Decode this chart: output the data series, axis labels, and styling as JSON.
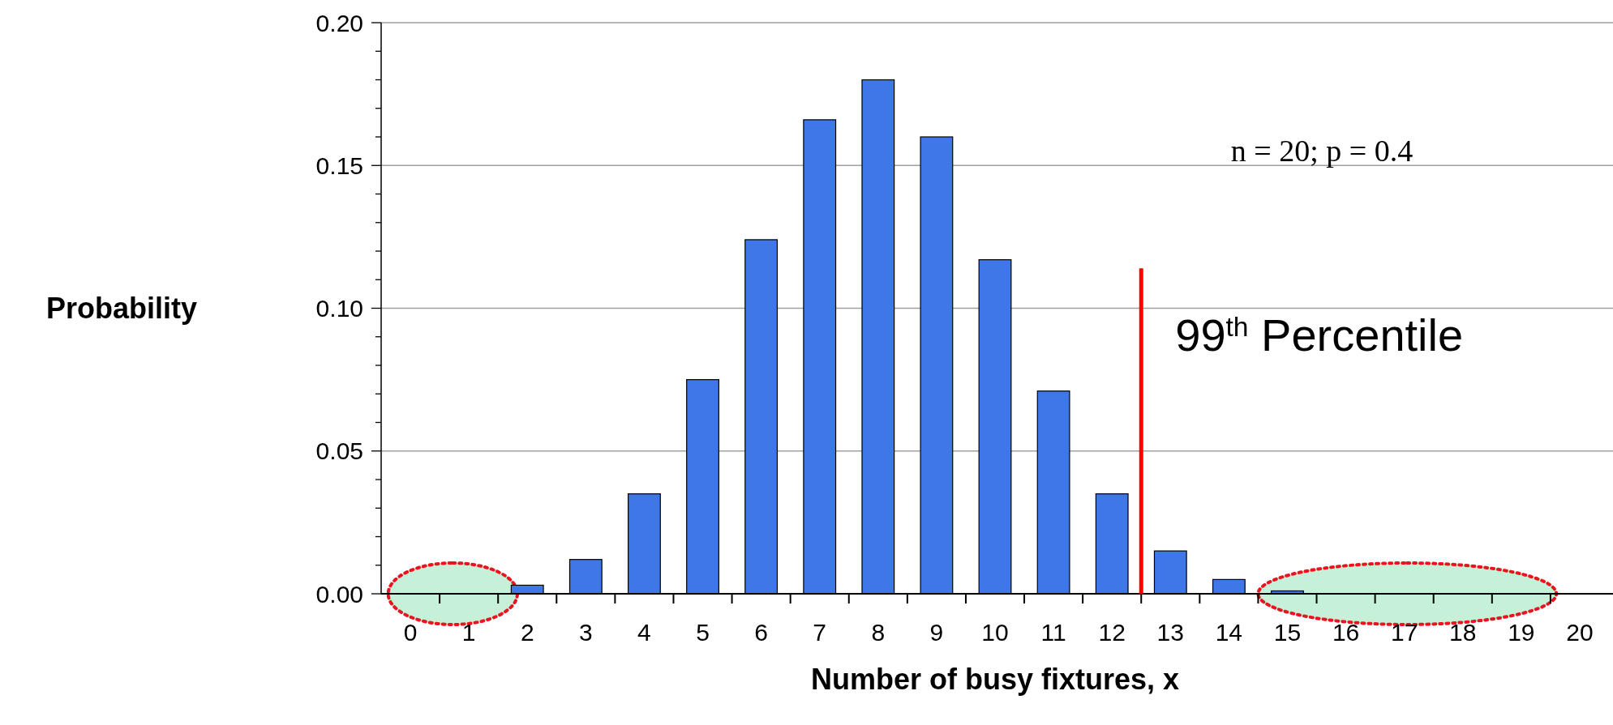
{
  "chart_data": {
    "type": "bar",
    "ylabel": "Probability",
    "xlabel": "Number of busy fixtures, x",
    "x": [
      0,
      1,
      2,
      3,
      4,
      5,
      6,
      7,
      8,
      9,
      10,
      11,
      12,
      13,
      14,
      15,
      16,
      17,
      18,
      19,
      20
    ],
    "values": [
      0.0,
      0.0,
      0.003,
      0.012,
      0.035,
      0.075,
      0.124,
      0.166,
      0.18,
      0.16,
      0.117,
      0.071,
      0.035,
      0.015,
      0.005,
      0.001,
      0.0,
      0.0,
      0.0,
      0.0,
      0.0
    ],
    "color": "#3f77e8",
    "xlim": [
      -0.5,
      20.5
    ],
    "xticks": [
      0,
      1,
      2,
      3,
      4,
      5,
      6,
      7,
      8,
      9,
      10,
      11,
      12,
      13,
      14,
      15,
      16,
      17,
      18,
      19,
      20,
      {
        "value": 0.5,
        "label": null
      },
      {
        "value": 1.5,
        "label": null
      },
      {
        "value": 2.5,
        "label": null
      },
      {
        "value": 3.5,
        "label": null
      },
      {
        "value": 4.5,
        "label": null
      },
      {
        "value": 5.5,
        "label": null
      },
      {
        "value": 6.5,
        "label": null
      },
      {
        "value": 7.5,
        "label": null
      },
      {
        "value": 8.5,
        "label": null
      },
      {
        "value": 9.5,
        "label": null
      },
      {
        "value": 10.5,
        "label": null
      },
      {
        "value": 11.5,
        "label": null
      },
      {
        "value": 12.5,
        "label": null
      },
      {
        "value": 13.5,
        "label": null
      },
      {
        "value": 14.5,
        "label": null
      },
      {
        "value": 15.5,
        "label": null
      },
      {
        "value": 16.5,
        "label": null
      },
      {
        "value": 17.5,
        "label": null
      },
      {
        "value": 18.5,
        "label": null
      },
      {
        "value": 19.5,
        "label": null
      }
    ],
    "ylim": [
      0,
      0.2
    ],
    "yticks": [
      {
        "value": 0,
        "label": "0.00"
      },
      {
        "value": 0.01,
        "label": null
      },
      {
        "value": 0.02,
        "label": null
      },
      {
        "value": 0.03,
        "label": null
      },
      {
        "value": 0.04,
        "label": null
      },
      {
        "value": 0.05,
        "label": "0.05"
      },
      {
        "value": 0.06,
        "label": null
      },
      {
        "value": 0.07,
        "label": null
      },
      {
        "value": 0.08,
        "label": null
      },
      {
        "value": 0.09,
        "label": null
      },
      {
        "value": 0.1,
        "label": "0.10"
      },
      {
        "value": 0.11,
        "label": null
      },
      {
        "value": 0.12,
        "label": null
      },
      {
        "value": 0.13,
        "label": null
      },
      {
        "value": 0.14,
        "label": null
      },
      {
        "value": 0.15,
        "label": "0.15"
      },
      {
        "value": 0.16,
        "label": null
      },
      {
        "value": 0.17,
        "label": null
      },
      {
        "value": 0.18,
        "label": null
      },
      {
        "value": 0.19,
        "label": null
      },
      {
        "value": 0.2,
        "label": "0.20"
      }
    ],
    "grid": "y",
    "ref_lines": [
      {
        "axis": "x",
        "value": 12.5,
        "label": "99$^{th}$ Percentile",
        "color": "#ff0000"
      }
    ],
    "bands": [
      {
        "axis": "x",
        "from": -0.38,
        "to": 1.83,
        "color": "#c6f0d8"
      },
      {
        "axis": "x",
        "from": 14.5,
        "to": 19.6,
        "color": "#c6f0d8"
      }
    ],
    "annotations": [
      "n = 20;   p = 0.4"
    ]
  }
}
